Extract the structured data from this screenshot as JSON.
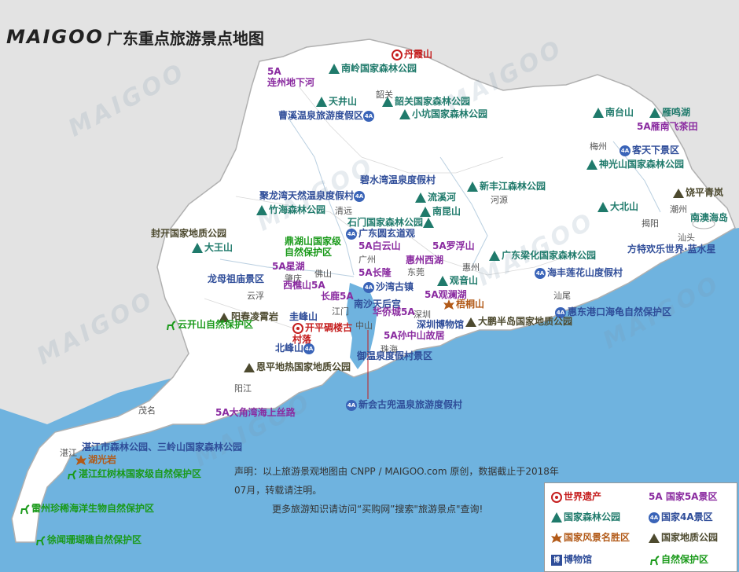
{
  "title": {
    "logo_text": "MAIGOO",
    "text": "广东重点旅游景点地图"
  },
  "watermark_text": "MAIGOO",
  "colors": {
    "sea": "#6fb3df",
    "land": "#ffffff",
    "outside": "#e3e3e3",
    "border": "#b0b0b0",
    "forest": "#1f7a6b",
    "scenic_4a": "#2f4d99",
    "scenic_5a": "#8a2ba0",
    "national_scenic": "#b25a18",
    "geopark": "#4d4a2f",
    "nature_reserve": "#1a9a1a",
    "world_heritage": "#c51e1e"
  },
  "cities": [
    {
      "name": "韶关"
    },
    {
      "name": "梅州"
    },
    {
      "name": "清远"
    },
    {
      "name": "河源"
    },
    {
      "name": "潮州"
    },
    {
      "name": "揭阳"
    },
    {
      "name": "汕头"
    },
    {
      "name": "广州"
    },
    {
      "name": "惠州"
    },
    {
      "name": "东莞"
    },
    {
      "name": "肇庆"
    },
    {
      "name": "佛山"
    },
    {
      "name": "云浮"
    },
    {
      "name": "江门"
    },
    {
      "name": "深圳"
    },
    {
      "name": "中山"
    },
    {
      "name": "珠海"
    },
    {
      "name": "汕尾"
    },
    {
      "name": "阳江"
    },
    {
      "name": "茂名"
    },
    {
      "name": "湛江"
    }
  ],
  "attractions": [
    {
      "name": "丹霞山",
      "type": "world_heritage"
    },
    {
      "name": "南岭国家森林公园",
      "type": "forest"
    },
    {
      "name": "连州地下河",
      "type": "5a"
    },
    {
      "name": "天井山",
      "type": "forest"
    },
    {
      "name": "韶关国家森林公园",
      "type": "forest"
    },
    {
      "name": "曹溪温泉旅游度假区",
      "type": "4a"
    },
    {
      "name": "小坑国家森林公园",
      "type": "forest"
    },
    {
      "name": "南台山",
      "type": "forest"
    },
    {
      "name": "雁鸣湖",
      "type": "forest"
    },
    {
      "name": "雁南飞茶田",
      "type": "5a"
    },
    {
      "name": "客天下景区",
      "type": "4a"
    },
    {
      "name": "神光山国家森林公园",
      "type": "forest"
    },
    {
      "name": "碧水湾温泉度假村",
      "type": "4a"
    },
    {
      "name": "新丰江森林公园",
      "type": "forest"
    },
    {
      "name": "聚龙湾天然温泉度假村",
      "type": "4a"
    },
    {
      "name": "流溪河",
      "type": "forest"
    },
    {
      "name": "竹海森林公园",
      "type": "forest"
    },
    {
      "name": "南昆山",
      "type": "forest"
    },
    {
      "name": "石门国家森林公园",
      "type": "forest"
    },
    {
      "name": "饶平青岚",
      "type": "geopark"
    },
    {
      "name": "大北山",
      "type": "forest"
    },
    {
      "name": "南澳海岛",
      "type": "forest"
    },
    {
      "name": "封开国家地质公园",
      "type": "geopark"
    },
    {
      "name": "广东圆玄道观",
      "type": "4a"
    },
    {
      "name": "大王山",
      "type": "forest"
    },
    {
      "name": "鼎湖山国家级自然保护区",
      "type": "nature_reserve"
    },
    {
      "name": "白云山",
      "type": "5a"
    },
    {
      "name": "罗浮山",
      "type": "5a"
    },
    {
      "name": "惠州西湖",
      "type": "5a"
    },
    {
      "name": "广东梁化国家森林公园",
      "type": "forest"
    },
    {
      "name": "方特欢乐世界·蓝水星",
      "type": "4a"
    },
    {
      "name": "星湖",
      "type": "5a"
    },
    {
      "name": "长隆",
      "type": "5a"
    },
    {
      "name": "龙母祖庙景区",
      "type": "4a"
    },
    {
      "name": "西樵山",
      "type": "5a"
    },
    {
      "name": "观音山",
      "type": "forest"
    },
    {
      "name": "海丰莲花山度假村",
      "type": "4a"
    },
    {
      "name": "长鹿",
      "type": "5a"
    },
    {
      "name": "沙湾古镇",
      "type": "4a"
    },
    {
      "name": "南沙天后宫",
      "type": "4a"
    },
    {
      "name": "观澜湖",
      "type": "5a"
    },
    {
      "name": "阳春凌霄岩",
      "type": "geopark"
    },
    {
      "name": "圭峰山",
      "type": "4a"
    },
    {
      "name": "梧桐山",
      "type": "national_scenic"
    },
    {
      "name": "惠东港口海龟自然保护区",
      "type": "nature_reserve"
    },
    {
      "name": "华侨城",
      "type": "5a"
    },
    {
      "name": "深圳博物馆",
      "type": "museum"
    },
    {
      "name": "大鹏半岛国家地质公园",
      "type": "geopark"
    },
    {
      "name": "云开山自然保护区",
      "type": "nature_reserve"
    },
    {
      "name": "开平碉楼古村落",
      "type": "world_heritage"
    },
    {
      "name": "孙中山故居",
      "type": "5a"
    },
    {
      "name": "北峰山",
      "type": "4a"
    },
    {
      "name": "御温泉度假村景区",
      "type": "4a"
    },
    {
      "name": "恩平地热国家地质公园",
      "type": "geopark"
    },
    {
      "name": "新会古兜温泉旅游度假村",
      "type": "4a"
    },
    {
      "name": "大角湾海上丝路",
      "type": "5a"
    },
    {
      "name": "湛江市森林公园、三岭山国家森林公园",
      "type": "4a"
    },
    {
      "name": "湖光岩",
      "type": "national_scenic"
    },
    {
      "name": "湛江红树林国家级自然保护区",
      "type": "nature_reserve"
    },
    {
      "name": "雷州珍稀海洋生物自然保护区",
      "type": "nature_reserve"
    },
    {
      "name": "徐闻珊瑚礁自然保护区",
      "type": "nature_reserve"
    }
  ],
  "notice": {
    "line1": "声明：以上旅游景观地图由 CNPP / MAIGOO.com 原创，数据截止于2018年07月，转载请注明。",
    "line2": "更多旅游知识请访问“买购网”搜索\"旅游景点\"查询!"
  },
  "legend": {
    "world_heritage": "世界遗产",
    "scenic_5a": "国家5A景区",
    "forest_park": "国家森林公园",
    "scenic_4a": "国家4A景区",
    "national_scenic": "国家风景名胜区",
    "geopark": "国家地质公园",
    "museum": "博物馆",
    "nature_reserve": "自然保护区"
  },
  "badges": {
    "five_a": "5A",
    "four_a": "4A",
    "museum": "博"
  }
}
